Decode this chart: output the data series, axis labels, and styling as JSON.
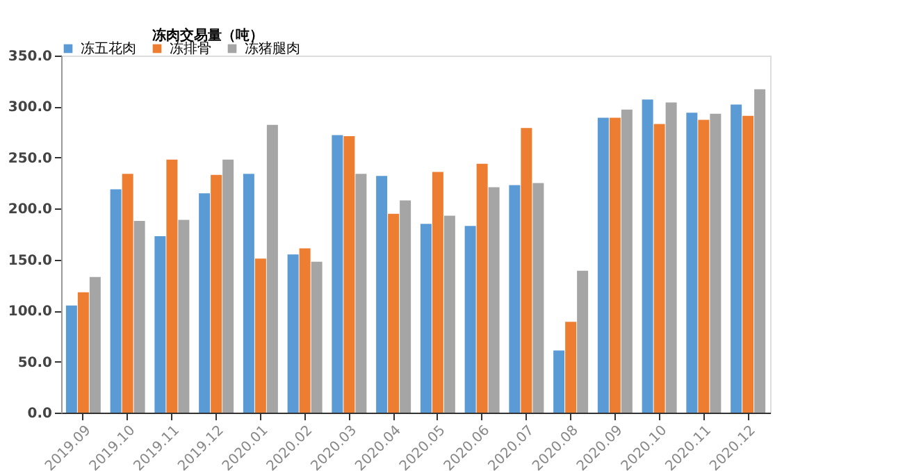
{
  "chart_data": {
    "type": "bar",
    "ylabel": "冻肉交易量（吨）",
    "categories": [
      "2019.09",
      "2019.10",
      "2019.11",
      "2019.12",
      "2020.01",
      "2020.02",
      "2020.03",
      "2020.04",
      "2020.05",
      "2020.06",
      "2020.07",
      "2020.08",
      "2020.09",
      "2020.10",
      "2020.11",
      "2020.12"
    ],
    "series": [
      {
        "name": "冻五花肉",
        "color": "#5b9bd5",
        "values": [
          105,
          219,
          173,
          215,
          234,
          155,
          272,
          232,
          185,
          183,
          223,
          61,
          289,
          307,
          294,
          302
        ]
      },
      {
        "name": "冻排骨",
        "color": "#ed7d31",
        "values": [
          118,
          234,
          248,
          233,
          151,
          161,
          271,
          195,
          236,
          244,
          279,
          89,
          289,
          283,
          287,
          291
        ]
      },
      {
        "name": "冻猪腿肉",
        "color": "#a5a5a5",
        "values": [
          133,
          188,
          189,
          248,
          282,
          148,
          234,
          208,
          193,
          221,
          225,
          139,
          297,
          304,
          293,
          317
        ]
      }
    ],
    "ylim": [
      0,
      350
    ],
    "yticks": [
      {
        "value": 0,
        "label": "0.0"
      },
      {
        "value": 50,
        "label": "50.0"
      },
      {
        "value": 100,
        "label": "100.0"
      },
      {
        "value": 150,
        "label": "150.0"
      },
      {
        "value": 200,
        "label": "200.0"
      },
      {
        "value": 250,
        "label": "250.0"
      },
      {
        "value": 300,
        "label": "300.0"
      },
      {
        "value": 350,
        "label": "350.0"
      }
    ],
    "grid": false,
    "legend": "top"
  }
}
